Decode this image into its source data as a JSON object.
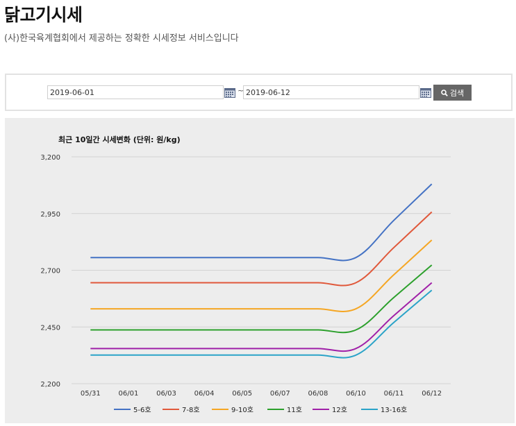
{
  "page": {
    "title": "닭고기시세",
    "subtitle": "(사)한국육계협회에서 제공하는 정확한 시세정보 서비스입니다"
  },
  "search": {
    "start_date": "2019-06-01",
    "separator": "~",
    "end_date": "2019-06-12",
    "button_label": "검색",
    "button_color": "#666666"
  },
  "chart_data": {
    "type": "line",
    "title": "최근 10일간 시세변화 (단위: 원/kg)",
    "xlabel": "",
    "ylabel": "",
    "categories": [
      "05/31",
      "06/01",
      "06/03",
      "06/04",
      "06/05",
      "06/07",
      "06/08",
      "06/10",
      "06/11",
      "06/12"
    ],
    "ylim": [
      2200,
      3200
    ],
    "yticks": [
      2200,
      2450,
      2700,
      2950,
      3200
    ],
    "ytick_labels": [
      "2,200",
      "2,450",
      "2,700",
      "2,950",
      "3,200"
    ],
    "grid": true,
    "legend_position": "bottom",
    "series": [
      {
        "name": "5-6호",
        "color": "#4472c4",
        "values": [
          2756,
          2756,
          2756,
          2756,
          2756,
          2756,
          2756,
          2756,
          2920,
          3080
        ]
      },
      {
        "name": "7-8호",
        "color": "#e0583a",
        "values": [
          2645,
          2645,
          2645,
          2645,
          2645,
          2645,
          2645,
          2645,
          2800,
          2957
        ]
      },
      {
        "name": "9-10호",
        "color": "#f5a623",
        "values": [
          2530,
          2530,
          2530,
          2530,
          2530,
          2530,
          2530,
          2530,
          2680,
          2833
        ]
      },
      {
        "name": "11호",
        "color": "#2ca02c",
        "values": [
          2437,
          2437,
          2437,
          2437,
          2437,
          2437,
          2437,
          2437,
          2580,
          2723
        ]
      },
      {
        "name": "12호",
        "color": "#a020a8",
        "values": [
          2355,
          2355,
          2355,
          2355,
          2355,
          2355,
          2355,
          2355,
          2500,
          2645
        ]
      },
      {
        "name": "13-16호",
        "color": "#2aa3c8",
        "values": [
          2326,
          2326,
          2326,
          2326,
          2326,
          2326,
          2326,
          2326,
          2470,
          2612
        ]
      }
    ]
  }
}
